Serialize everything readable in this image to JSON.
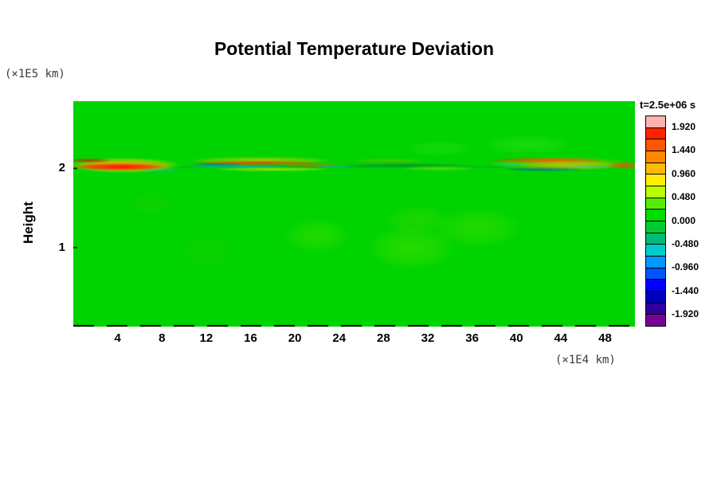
{
  "title": "Potential Temperature Deviation",
  "axes": {
    "y_unit": "(×1E5 km)",
    "y_label": "Height",
    "x_unit": "(×1E4 km)"
  },
  "chart_data": {
    "type": "heatmap",
    "title": "Potential Temperature Deviation",
    "time_label": "t=2.5e+06 s",
    "xlabel_unit": "(×1E4 km)",
    "ylabel": "Height",
    "ylabel_unit": "(×1E5 km)",
    "x_range": [
      0,
      50.7
    ],
    "y_range": [
      0,
      2.85
    ],
    "x_ticks": [
      4,
      8,
      12,
      16,
      20,
      24,
      28,
      32,
      36,
      40,
      44,
      48
    ],
    "y_ticks": [
      1,
      2
    ],
    "grid": false,
    "background_value": 0.0,
    "background_color": "#00d400",
    "colorbar": {
      "label": "t=2.5e+06 s",
      "position": "right",
      "range": [
        -2.16,
        2.16
      ],
      "tick_labels": [
        "1.920",
        "1.440",
        "0.960",
        "0.480",
        "0.000",
        "-0.480",
        "-0.960",
        "-1.440",
        "-1.920"
      ],
      "colors_top_to_bottom": [
        "#ffb0b0",
        "#ff2200",
        "#ff5500",
        "#ff8800",
        "#ffbb00",
        "#ffee00",
        "#bbff00",
        "#55ee00",
        "#00dd00",
        "#00cc33",
        "#00bb77",
        "#00cccc",
        "#0099ff",
        "#0055ff",
        "#0000ff",
        "#0000bb",
        "#330099",
        "#770099"
      ],
      "segments": 18
    },
    "description": "Field is near zero (green) everywhere except a thin horizontal disturbance band near height 2 containing strong positive (red/orange/yellow) and negative (blue/cyan) potential-temperature deviations, plus faint weak positive patches below.",
    "field_blobs": [
      {
        "x": 25.0,
        "y": 2.02,
        "rx": 26.0,
        "ry": 0.018,
        "c": "#009933",
        "a": 0.55
      },
      {
        "x": 25.0,
        "y": 2.08,
        "rx": 26.0,
        "ry": 0.012,
        "c": "#33bb00",
        "a": 0.3
      },
      {
        "x": 4.6,
        "y": 2.04,
        "rx": 5.2,
        "ry": 0.1,
        "c": "#ffdd00",
        "a": 0.75
      },
      {
        "x": 4.4,
        "y": 2.03,
        "rx": 4.8,
        "ry": 0.07,
        "c": "#ff8800",
        "a": 0.9
      },
      {
        "x": 4.2,
        "y": 2.02,
        "rx": 4.2,
        "ry": 0.045,
        "c": "#ff1100",
        "a": 1.0
      },
      {
        "x": 1.5,
        "y": 2.1,
        "rx": 2.0,
        "ry": 0.03,
        "c": "#cc2200",
        "a": 0.8
      },
      {
        "x": 8.0,
        "y": 1.97,
        "rx": 2.2,
        "ry": 0.025,
        "c": "#00bbdd",
        "a": 0.45
      },
      {
        "x": 17.0,
        "y": 2.1,
        "rx": 6.5,
        "ry": 0.05,
        "c": "#ffcc00",
        "a": 0.6
      },
      {
        "x": 16.5,
        "y": 2.07,
        "rx": 6.0,
        "ry": 0.03,
        "c": "#ff3300",
        "a": 0.85
      },
      {
        "x": 15.0,
        "y": 2.02,
        "rx": 5.0,
        "ry": 0.022,
        "c": "#00aaff",
        "a": 0.6
      },
      {
        "x": 18.0,
        "y": 1.99,
        "rx": 5.5,
        "ry": 0.03,
        "c": "#ffee00",
        "a": 0.55
      },
      {
        "x": 13.0,
        "y": 2.05,
        "rx": 2.5,
        "ry": 0.02,
        "c": "#0044ff",
        "a": 0.5
      },
      {
        "x": 21.5,
        "y": 2.04,
        "rx": 2.8,
        "ry": 0.025,
        "c": "#ff5500",
        "a": 0.6
      },
      {
        "x": 23.5,
        "y": 2.02,
        "rx": 2.0,
        "ry": 0.02,
        "c": "#00ccff",
        "a": 0.4
      },
      {
        "x": 30.0,
        "y": 2.04,
        "rx": 6.0,
        "ry": 0.025,
        "c": "#007744",
        "a": 0.6
      },
      {
        "x": 28.5,
        "y": 2.1,
        "rx": 3.5,
        "ry": 0.03,
        "c": "#ff9900",
        "a": 0.3
      },
      {
        "x": 33.0,
        "y": 2.0,
        "rx": 3.5,
        "ry": 0.035,
        "c": "#eeff00",
        "a": 0.3
      },
      {
        "x": 43.0,
        "y": 2.1,
        "rx": 5.5,
        "ry": 0.04,
        "c": "#ff2200",
        "a": 0.85
      },
      {
        "x": 45.0,
        "y": 2.04,
        "rx": 5.0,
        "ry": 0.06,
        "c": "#ff9900",
        "a": 0.55
      },
      {
        "x": 42.5,
        "y": 1.99,
        "rx": 4.0,
        "ry": 0.028,
        "c": "#0033ee",
        "a": 0.6
      },
      {
        "x": 46.5,
        "y": 2.02,
        "rx": 2.6,
        "ry": 0.022,
        "c": "#00bbff",
        "a": 0.55
      },
      {
        "x": 44.0,
        "y": 2.06,
        "rx": 6.5,
        "ry": 0.09,
        "c": "#ffee00",
        "a": 0.35
      },
      {
        "x": 49.8,
        "y": 2.04,
        "rx": 1.6,
        "ry": 0.05,
        "c": "#ff4400",
        "a": 0.75
      },
      {
        "x": 39.5,
        "y": 2.05,
        "rx": 1.8,
        "ry": 0.02,
        "c": "#00ccff",
        "a": 0.4
      },
      {
        "x": 22.0,
        "y": 1.15,
        "rx": 3.0,
        "ry": 0.22,
        "c": "#99ee00",
        "a": 0.22
      },
      {
        "x": 30.5,
        "y": 1.0,
        "rx": 4.0,
        "ry": 0.28,
        "c": "#99ee00",
        "a": 0.26
      },
      {
        "x": 31.0,
        "y": 1.35,
        "rx": 3.0,
        "ry": 0.18,
        "c": "#88dd00",
        "a": 0.22
      },
      {
        "x": 36.5,
        "y": 1.25,
        "rx": 4.0,
        "ry": 0.25,
        "c": "#99ee00",
        "a": 0.22
      },
      {
        "x": 7.0,
        "y": 1.55,
        "rx": 2.2,
        "ry": 0.15,
        "c": "#55cc00",
        "a": 0.15
      },
      {
        "x": 12.0,
        "y": 0.95,
        "rx": 2.6,
        "ry": 0.2,
        "c": "#55cc00",
        "a": 0.15
      },
      {
        "x": 41.0,
        "y": 2.3,
        "rx": 4.0,
        "ry": 0.12,
        "c": "#66ee44",
        "a": 0.25
      },
      {
        "x": 33.0,
        "y": 2.25,
        "rx": 3.0,
        "ry": 0.1,
        "c": "#66ee44",
        "a": 0.2
      }
    ]
  }
}
